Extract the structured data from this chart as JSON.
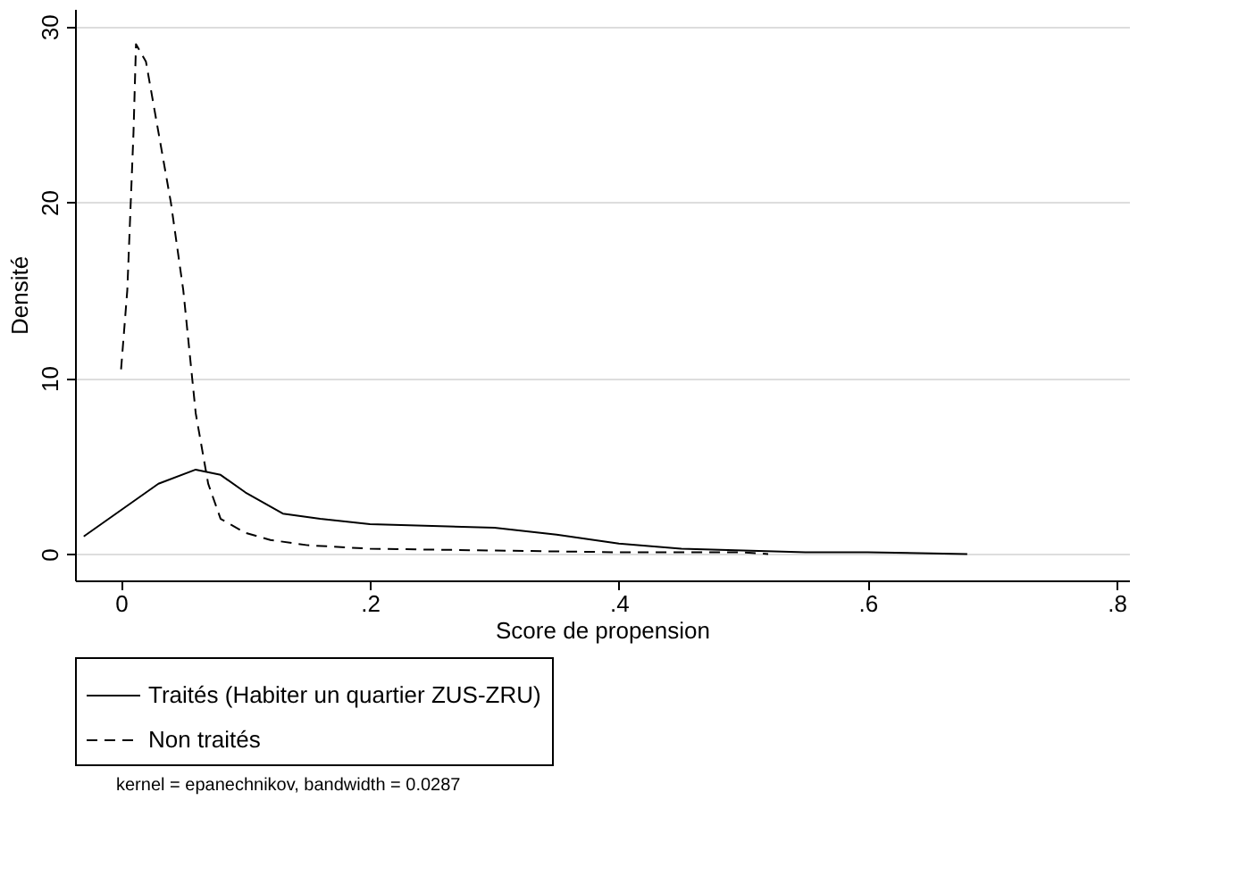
{
  "chart_data": {
    "type": "line",
    "xlabel": "Score de propension",
    "ylabel": "Densité",
    "xlim": [
      -0.037,
      0.81
    ],
    "xticks": [
      {
        "value": 0,
        "label": "0"
      },
      {
        "value": 0.2,
        "label": ".2"
      },
      {
        "value": 0.4,
        "label": ".4"
      },
      {
        "value": 0.6,
        "label": ".6"
      },
      {
        "value": 0.8,
        "label": ".8"
      }
    ],
    "ylim": [
      -1.5,
      31
    ],
    "yticks": [
      0,
      10,
      20,
      30
    ],
    "grid": "y",
    "legend": "bottom",
    "annotations": [
      "kernel = epanechnikov, bandwidth = 0.0287"
    ],
    "series": [
      {
        "name": "Traités (Habiter un quartier ZUS-ZRU)",
        "color": "#000000",
        "line_style": "solid",
        "x": [
          -0.03,
          0,
          0.03,
          0.06,
          0.08,
          0.1,
          0.13,
          0.16,
          0.2,
          0.25,
          0.3,
          0.35,
          0.4,
          0.45,
          0.5,
          0.55,
          0.6,
          0.68
        ],
        "values": [
          1,
          2.5,
          4,
          4.8,
          4.5,
          3.5,
          2.3,
          2,
          1.7,
          1.6,
          1.5,
          1.1,
          0.6,
          0.3,
          0.2,
          0.1,
          0.1,
          0
        ]
      },
      {
        "name": "Non traités",
        "color": "#000000",
        "line_style": "dashed",
        "x": [
          0,
          0.005,
          0.01,
          0.012,
          0.02,
          0.03,
          0.04,
          0.05,
          0.06,
          0.07,
          0.08,
          0.1,
          0.12,
          0.15,
          0.2,
          0.3,
          0.4,
          0.5,
          0.52
        ],
        "values": [
          10.5,
          15,
          24,
          29,
          28,
          24,
          20,
          15,
          8,
          4,
          2,
          1.2,
          0.8,
          0.5,
          0.3,
          0.2,
          0.1,
          0.1,
          0
        ]
      }
    ]
  }
}
